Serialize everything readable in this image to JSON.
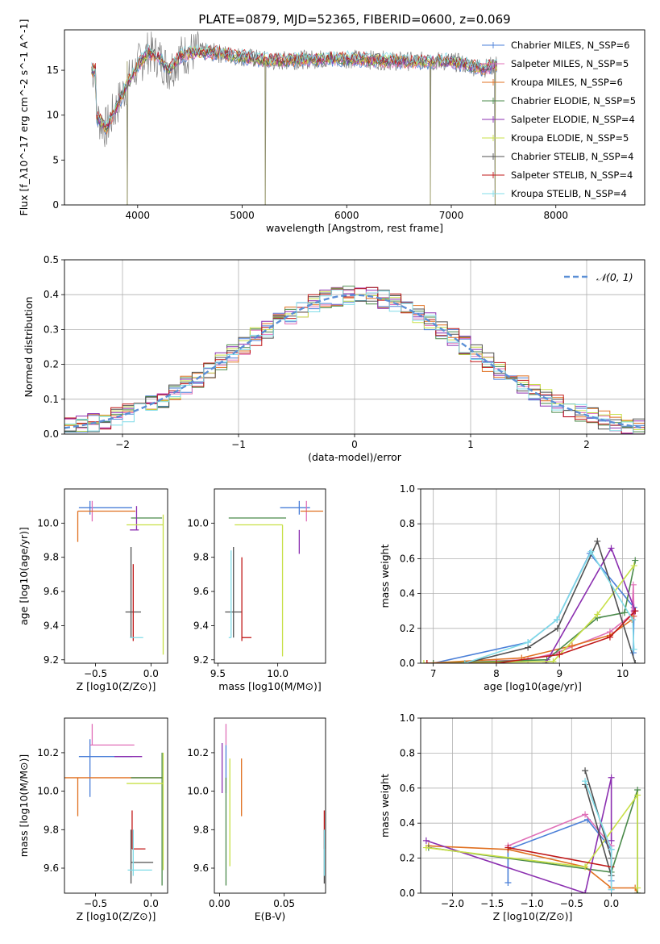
{
  "figure": {
    "title": "PLATE=0879, MJD=52365, FIBERID=0600, z=0.069"
  },
  "model_colors": [
    "#4a7fd8",
    "#e070b8",
    "#e07020",
    "#4a8a4a",
    "#8b2fb0",
    "#c8e048",
    "#505050",
    "#c01818",
    "#80dce8"
  ],
  "chart_data": [
    {
      "id": "spectrum",
      "type": "line",
      "xlabel": "wavelength [Angstrom, rest frame]",
      "ylabel": "Flux [f_λ10^-17 erg cm^-2 s^-1 A^-1]",
      "xlim": [
        3300,
        8850
      ],
      "ylim": [
        0,
        19.5
      ],
      "xticks": [
        4000,
        5000,
        6000,
        7000,
        8000
      ],
      "yticks": [
        0,
        5,
        10,
        15
      ],
      "legend_position": "upper-right",
      "legend": [
        "Chabrier MILES, N_SSP=6",
        "Salpeter MILES, N_SSP=5",
        "Kroupa MILES, N_SSP=6",
        "Chabrier ELODIE, N_SSP=5",
        "Salpeter ELODIE, N_SSP=4",
        "Kroupa ELODIE, N_SSP=5",
        "Chabrier STELIB, N_SSP=4",
        "Salpeter STELIB, N_SSP=4",
        "Kroupa STELIB, N_SSP=4"
      ],
      "data_shape": {
        "x": [
          3600,
          3700,
          3800,
          3900,
          4000,
          4100,
          4200,
          4300,
          4400,
          4500,
          4700,
          5000,
          5300,
          5600,
          6000,
          6500,
          7000,
          7300,
          7500,
          7700,
          8000,
          8300,
          8600,
          8800
        ],
        "y": [
          10,
          8.5,
          11,
          13.5,
          15.5,
          17,
          16.5,
          15,
          16.5,
          17,
          17,
          16.5,
          16,
          16.2,
          16.3,
          16,
          16,
          15.2,
          15.8,
          15.5,
          15.5,
          15,
          14,
          15
        ]
      },
      "spikes": [
        3900,
        5220,
        6800,
        7420
      ]
    },
    {
      "id": "residuals",
      "type": "histogram",
      "xlabel": "(data-model)/error",
      "ylabel": "Normed distribution",
      "xlim": [
        -2.5,
        2.5
      ],
      "ylim": [
        0,
        0.5
      ],
      "xticks": [
        -2,
        -1,
        0,
        1,
        2
      ],
      "yticks": [
        0.0,
        0.1,
        0.2,
        0.3,
        0.4,
        0.5
      ],
      "grid": true,
      "legend_position": "upper-right",
      "reference_label": "𝒩(0, 1)",
      "reference_color": "#5b8fd6",
      "bin_width": 0.1
    },
    {
      "id": "age_vs_Z",
      "type": "errorbar",
      "xlabel": "Z [log10(Z/Z⊙)]",
      "ylabel": "age  [log10(age/yr)]",
      "xlim": [
        -0.78,
        0.15
      ],
      "ylim": [
        9.18,
        10.2
      ],
      "xticks": [
        -0.5,
        0.0
      ],
      "yticks": [
        9.2,
        9.4,
        9.6,
        9.8,
        10.0
      ],
      "points": [
        {
          "x": -0.55,
          "y": 10.09,
          "xerr": [
            0.1,
            0.38
          ],
          "yerr": [
            0.04,
            0.04
          ]
        },
        {
          "x": -0.53,
          "y": 10.07,
          "xerr": [
            0.0,
            0.0
          ],
          "yerr": [
            0.06,
            0.06
          ]
        },
        {
          "x": -0.66,
          "y": 10.07,
          "xerr": [
            0.0,
            0.52
          ],
          "yerr": [
            0.18,
            0.0
          ]
        },
        {
          "x": 0.1,
          "y": 10.03,
          "xerr": [
            0.28,
            0.0
          ],
          "yerr": [
            0.0,
            0.0
          ]
        },
        {
          "x": -0.13,
          "y": 9.96,
          "xerr": [
            0.06,
            0.02
          ],
          "yerr": [
            0.0,
            0.14
          ]
        },
        {
          "x": 0.11,
          "y": 9.99,
          "xerr": [
            0.33,
            0.0
          ],
          "yerr": [
            0.76,
            0.06
          ]
        },
        {
          "x": -0.18,
          "y": 9.48,
          "xerr": [
            0.05,
            0.09
          ],
          "yerr": [
            0.15,
            0.38
          ]
        },
        {
          "x": -0.16,
          "y": 9.33,
          "xerr": [
            0.0,
            0.0
          ],
          "yerr": [
            0.02,
            0.43
          ]
        },
        {
          "x": -0.14,
          "y": 9.33,
          "xerr": [
            0.05,
            0.07
          ],
          "yerr": [
            0.0,
            0.0
          ]
        }
      ]
    },
    {
      "id": "age_vs_mass",
      "type": "errorbar",
      "xlabel": "mass [log10(M/M⊙)]",
      "ylabel": "",
      "xlim": [
        9.47,
        10.4
      ],
      "ylim": [
        9.18,
        10.2
      ],
      "xticks": [
        9.5,
        10.0
      ],
      "yticks": [
        9.2,
        9.4,
        9.6,
        9.8,
        10.0
      ],
      "points": [
        {
          "x": 10.18,
          "y": 10.09,
          "xerr": [
            0.16,
            0.09
          ],
          "yerr": [
            0.04,
            0.04
          ]
        },
        {
          "x": 10.24,
          "y": 10.07,
          "xerr": [
            0.0,
            0.0
          ],
          "yerr": [
            0.06,
            0.06
          ]
        },
        {
          "x": 10.19,
          "y": 10.07,
          "xerr": [
            0.0,
            0.19
          ],
          "yerr": [
            0.0,
            0.0
          ]
        },
        {
          "x": 10.07,
          "y": 10.03,
          "xerr": [
            0.48,
            0.0
          ],
          "yerr": [
            0.0,
            0.0
          ]
        },
        {
          "x": 10.18,
          "y": 9.96,
          "xerr": [
            0.0,
            0.0
          ],
          "yerr": [
            0.14,
            0.0
          ]
        },
        {
          "x": 10.04,
          "y": 9.99,
          "xerr": [
            0.4,
            0.0
          ],
          "yerr": [
            0.77,
            0.0
          ]
        },
        {
          "x": 9.63,
          "y": 9.48,
          "xerr": [
            0.07,
            0.07
          ],
          "yerr": [
            0.15,
            0.38
          ]
        },
        {
          "x": 9.7,
          "y": 9.33,
          "xerr": [
            0.0,
            0.08
          ],
          "yerr": [
            0.02,
            0.47
          ]
        },
        {
          "x": 9.61,
          "y": 9.33,
          "xerr": [
            0.02,
            0.0
          ],
          "yerr": [
            0.0,
            0.51
          ]
        }
      ]
    },
    {
      "id": "weight_vs_age",
      "type": "line",
      "xlabel": "age  [log10(age/yr)]",
      "ylabel": "mass weight",
      "xlim": [
        6.8,
        10.35
      ],
      "ylim": [
        0,
        1.0
      ],
      "xticks": [
        7,
        8,
        9,
        10
      ],
      "yticks": [
        0.0,
        0.2,
        0.4,
        0.6,
        0.8,
        1.0
      ],
      "grid": true,
      "series": [
        {
          "x": [
            7.0,
            8.5,
            8.96,
            9.48,
            10.18,
            10.17
          ],
          "y": [
            0.0,
            0.12,
            0.25,
            0.63,
            0.32,
            0.06
          ]
        },
        {
          "x": [
            7.0,
            8.5,
            8.96,
            9.8,
            10.15,
            10.17,
            10.18
          ],
          "y": [
            0.0,
            0.02,
            0.06,
            0.18,
            0.28,
            0.45,
            0.27
          ]
        },
        {
          "x": [
            6.9,
            8.4,
            9.2,
            9.8,
            10.15,
            10.17
          ],
          "y": [
            0.0,
            0.03,
            0.1,
            0.16,
            0.25,
            0.27
          ]
        },
        {
          "x": [
            7.0,
            8.8,
            9.6,
            10.03,
            10.2
          ],
          "y": [
            0.0,
            0.02,
            0.26,
            0.29,
            0.59
          ]
        },
        {
          "x": [
            8.78,
            9.82,
            10.2,
            10.18
          ],
          "y": [
            0.0,
            0.66,
            0.3,
            0.3
          ]
        },
        {
          "x": [
            6.85,
            8.9,
            9.6,
            10.18
          ],
          "y": [
            0.0,
            0.01,
            0.28,
            0.56
          ]
        },
        {
          "x": [
            7.5,
            8.5,
            8.97,
            9.6,
            10.2
          ],
          "y": [
            0.0,
            0.09,
            0.2,
            0.7,
            0.0
          ]
        },
        {
          "x": [
            6.9,
            8.0,
            9.0,
            9.8,
            10.2
          ],
          "y": [
            0.0,
            0.0,
            0.05,
            0.15,
            0.3
          ]
        },
        {
          "x": [
            7.5,
            8.5,
            8.96,
            9.5,
            10.16,
            10.18
          ],
          "y": [
            0.0,
            0.12,
            0.25,
            0.64,
            0.25,
            0.08
          ]
        }
      ]
    },
    {
      "id": "mass_vs_Z",
      "type": "errorbar",
      "xlabel": "Z [log10(Z/Z⊙)]",
      "ylabel": "mass [log10(M/M⊙)]",
      "xlim": [
        -0.78,
        0.15
      ],
      "ylim": [
        9.47,
        10.38
      ],
      "xticks": [
        -0.5,
        0.0
      ],
      "yticks": [
        9.6,
        9.8,
        10.0,
        10.2
      ],
      "points": [
        {
          "x": -0.55,
          "y": 10.18,
          "xerr": [
            0.1,
            0.38
          ],
          "yerr": [
            0.21,
            0.09
          ]
        },
        {
          "x": -0.53,
          "y": 10.24,
          "xerr": [
            0.02,
            0.38
          ],
          "yerr": [
            0.0,
            0.11
          ]
        },
        {
          "x": -0.66,
          "y": 10.07,
          "xerr": [
            0.13,
            0.77
          ],
          "yerr": [
            0.2,
            0.0
          ]
        },
        {
          "x": 0.1,
          "y": 10.07,
          "xerr": [
            0.28,
            0.0
          ],
          "yerr": [
            0.56,
            0.13
          ]
        },
        {
          "x": -0.13,
          "y": 10.18,
          "xerr": [
            0.2,
            0.05
          ],
          "yerr": [
            0.0,
            0.0
          ]
        },
        {
          "x": 0.11,
          "y": 10.04,
          "xerr": [
            0.33,
            0.0
          ],
          "yerr": [
            0.45,
            0.16
          ]
        },
        {
          "x": -0.18,
          "y": 9.63,
          "xerr": [
            0.0,
            0.2
          ],
          "yerr": [
            0.11,
            0.17
          ]
        },
        {
          "x": -0.17,
          "y": 9.7,
          "xerr": [
            0.0,
            0.12
          ],
          "yerr": [
            0.0,
            0.2
          ]
        },
        {
          "x": -0.16,
          "y": 9.59,
          "xerr": [
            0.05,
            0.17
          ],
          "yerr": [
            0.03,
            0.21
          ]
        }
      ]
    },
    {
      "id": "mass_vs_ebv",
      "type": "errorbar",
      "xlabel": "E(B-V)",
      "ylabel": "",
      "xlim": [
        -0.004,
        0.082
      ],
      "ylim": [
        9.47,
        10.38
      ],
      "xticks": [
        0.0,
        0.05
      ],
      "yticks": [
        9.6,
        9.8,
        10.0,
        10.2
      ],
      "points": [
        {
          "x": 0.005,
          "y": 10.18,
          "xerr": [
            0,
            0
          ],
          "yerr": [
            0.19,
            0.06
          ]
        },
        {
          "x": 0.005,
          "y": 10.24,
          "xerr": [
            0,
            0
          ],
          "yerr": [
            0.0,
            0.11
          ]
        },
        {
          "x": 0.017,
          "y": 10.07,
          "xerr": [
            0,
            0
          ],
          "yerr": [
            0.2,
            0.1
          ]
        },
        {
          "x": 0.005,
          "y": 10.07,
          "xerr": [
            0,
            0
          ],
          "yerr": [
            0.56,
            0.0
          ]
        },
        {
          "x": 0.002,
          "y": 10.18,
          "xerr": [
            0,
            0
          ],
          "yerr": [
            0.19,
            0.07
          ]
        },
        {
          "x": 0.008,
          "y": 10.04,
          "xerr": [
            0,
            0
          ],
          "yerr": [
            0.43,
            0.13
          ]
        },
        {
          "x": 0.081,
          "y": 9.63,
          "xerr": [
            0,
            0
          ],
          "yerr": [
            0.11,
            0.17
          ]
        },
        {
          "x": 0.081,
          "y": 9.7,
          "xerr": [
            0,
            0
          ],
          "yerr": [
            0.0,
            0.2
          ]
        },
        {
          "x": 0.081,
          "y": 9.59,
          "xerr": [
            0,
            0
          ],
          "yerr": [
            0.03,
            0.21
          ]
        }
      ]
    },
    {
      "id": "weight_vs_Z",
      "type": "line",
      "xlabel": "Z [log10(Z/Z⊙)]",
      "ylabel": "mass weight",
      "xlim": [
        -2.4,
        0.42
      ],
      "ylim": [
        0,
        1.0
      ],
      "xticks": [
        -2.0,
        -1.5,
        -1.0,
        -0.5,
        0.0
      ],
      "yticks": [
        0.0,
        0.2,
        0.4,
        0.6,
        0.8,
        1.0
      ],
      "grid": true,
      "series": [
        {
          "x": [
            -1.3,
            -1.3,
            -0.3,
            0.0,
            0.0
          ],
          "y": [
            0.06,
            0.25,
            0.42,
            0.25,
            0.07
          ]
        },
        {
          "x": [
            -1.3,
            -0.33,
            0.0,
            0.0
          ],
          "y": [
            0.27,
            0.45,
            0.27,
            0.02
          ]
        },
        {
          "x": [
            -2.3,
            -1.3,
            -0.33,
            0.0,
            0.3,
            0.33
          ],
          "y": [
            0.27,
            0.25,
            0.15,
            0.03,
            0.03,
            0.0
          ]
        },
        {
          "x": [
            -2.3,
            0.0,
            0.33,
            0.33
          ],
          "y": [
            0.26,
            0.12,
            0.59,
            0.0
          ]
        },
        {
          "x": [
            -2.33,
            -0.33,
            0.0,
            0.0
          ],
          "y": [
            0.3,
            0.0,
            0.66,
            0.3
          ]
        },
        {
          "x": [
            -2.33,
            -0.33,
            0.33,
            0.33
          ],
          "y": [
            0.26,
            0.15,
            0.56,
            0.03
          ]
        },
        {
          "x": [
            -0.33,
            0.0,
            0.0,
            -0.33
          ],
          "y": [
            0.7,
            0.2,
            0.1,
            0.62
          ]
        },
        {
          "x": [
            -1.3,
            0.0
          ],
          "y": [
            0.26,
            0.15
          ]
        },
        {
          "x": [
            -0.33,
            0.0,
            0.0
          ],
          "y": [
            0.64,
            0.25,
            0.02
          ]
        }
      ]
    }
  ]
}
